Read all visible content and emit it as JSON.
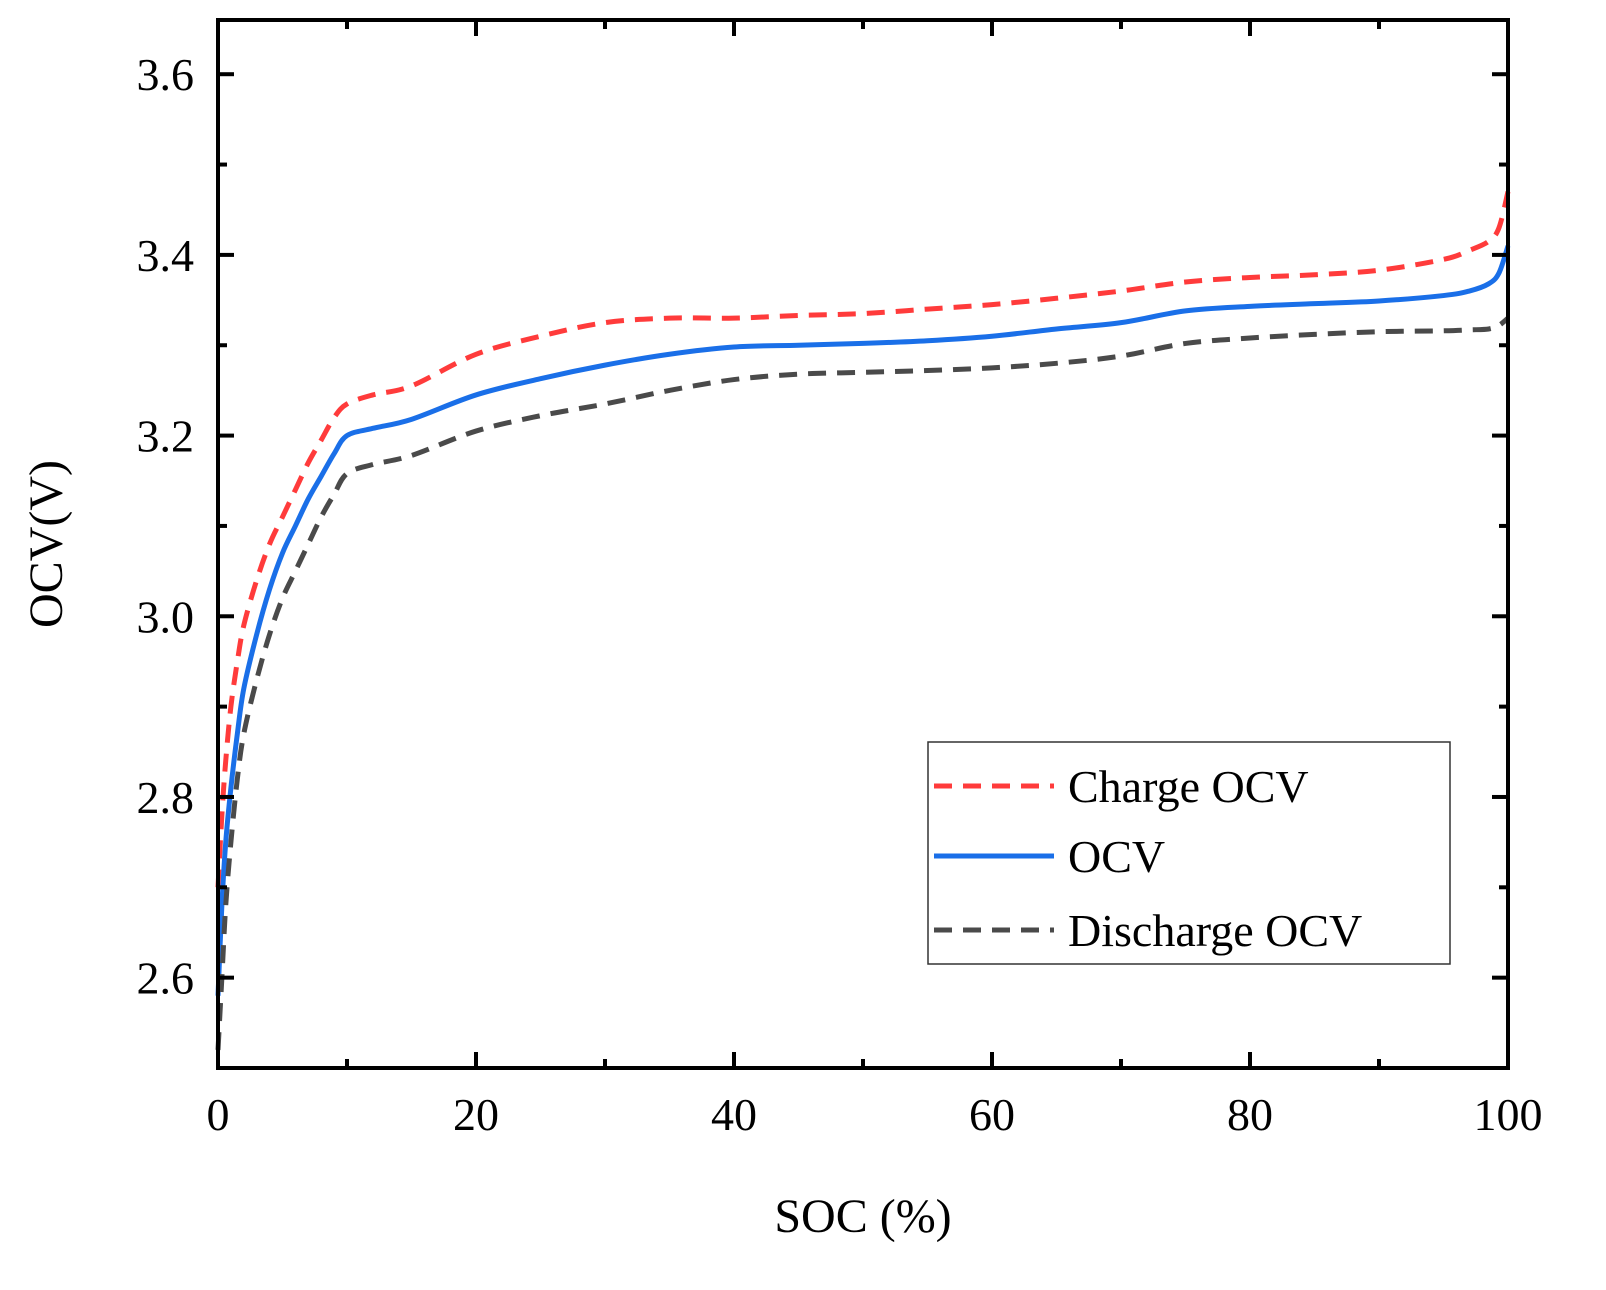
{
  "chart_data": {
    "type": "line",
    "xlabel": "SOC (%)",
    "ylabel": "OCV(V)",
    "xlim": [
      0,
      100
    ],
    "ylim": [
      2.5,
      3.66
    ],
    "xticks": [
      0,
      20,
      40,
      60,
      80,
      100
    ],
    "yticks": [
      2.6,
      2.8,
      3.0,
      3.2,
      3.4,
      3.6
    ],
    "xtick_labels": [
      "0",
      "20",
      "40",
      "60",
      "80",
      "100"
    ],
    "ytick_labels": [
      "2.6",
      "2.8",
      "3.0",
      "3.2",
      "3.4",
      "3.6"
    ],
    "legend_position": "lower-right",
    "series": [
      {
        "name": "Charge OCV",
        "color": "#ff3b3b",
        "style": "dashed",
        "x": [
          0,
          0.3,
          0.6,
          1,
          1.5,
          2,
          3,
          4,
          5,
          6,
          7,
          8,
          9,
          10,
          12,
          15,
          20,
          25,
          30,
          35,
          40,
          45,
          50,
          55,
          60,
          65,
          70,
          75,
          80,
          85,
          90,
          95,
          97,
          98.5,
          99.3,
          100
        ],
        "y": [
          2.7,
          2.78,
          2.84,
          2.9,
          2.95,
          2.99,
          3.04,
          3.08,
          3.11,
          3.14,
          3.17,
          3.195,
          3.22,
          3.235,
          3.245,
          3.255,
          3.29,
          3.31,
          3.325,
          3.33,
          3.33,
          3.333,
          3.335,
          3.34,
          3.345,
          3.352,
          3.36,
          3.37,
          3.375,
          3.378,
          3.383,
          3.395,
          3.405,
          3.415,
          3.43,
          3.47
        ]
      },
      {
        "name": "OCV",
        "color": "#1a6fe8",
        "style": "solid",
        "x": [
          0,
          0.3,
          0.6,
          1,
          1.5,
          2,
          3,
          4,
          5,
          6,
          7,
          8,
          9,
          10,
          12,
          15,
          20,
          25,
          30,
          35,
          40,
          45,
          50,
          55,
          60,
          65,
          70,
          75,
          80,
          85,
          90,
          95,
          97,
          98.5,
          99.3,
          100
        ],
        "y": [
          2.58,
          2.68,
          2.75,
          2.81,
          2.87,
          2.92,
          2.98,
          3.03,
          3.07,
          3.1,
          3.13,
          3.155,
          3.18,
          3.2,
          3.208,
          3.218,
          3.245,
          3.263,
          3.278,
          3.29,
          3.298,
          3.3,
          3.302,
          3.305,
          3.31,
          3.318,
          3.325,
          3.338,
          3.343,
          3.346,
          3.349,
          3.355,
          3.36,
          3.368,
          3.38,
          3.41
        ]
      },
      {
        "name": "Discharge OCV",
        "color": "#4a4a4a",
        "style": "dashed",
        "x": [
          0,
          0.3,
          0.6,
          1,
          1.5,
          2,
          3,
          4,
          5,
          6,
          7,
          8,
          9,
          10,
          12,
          15,
          20,
          25,
          30,
          35,
          40,
          45,
          50,
          55,
          60,
          65,
          70,
          75,
          80,
          85,
          90,
          95,
          97,
          98.5,
          99.3,
          100
        ],
        "y": [
          2.52,
          2.6,
          2.68,
          2.75,
          2.82,
          2.87,
          2.93,
          2.98,
          3.02,
          3.05,
          3.08,
          3.11,
          3.135,
          3.158,
          3.168,
          3.178,
          3.205,
          3.222,
          3.235,
          3.25,
          3.262,
          3.268,
          3.27,
          3.272,
          3.275,
          3.28,
          3.288,
          3.302,
          3.308,
          3.312,
          3.315,
          3.316,
          3.317,
          3.318,
          3.322,
          3.33
        ]
      }
    ]
  }
}
